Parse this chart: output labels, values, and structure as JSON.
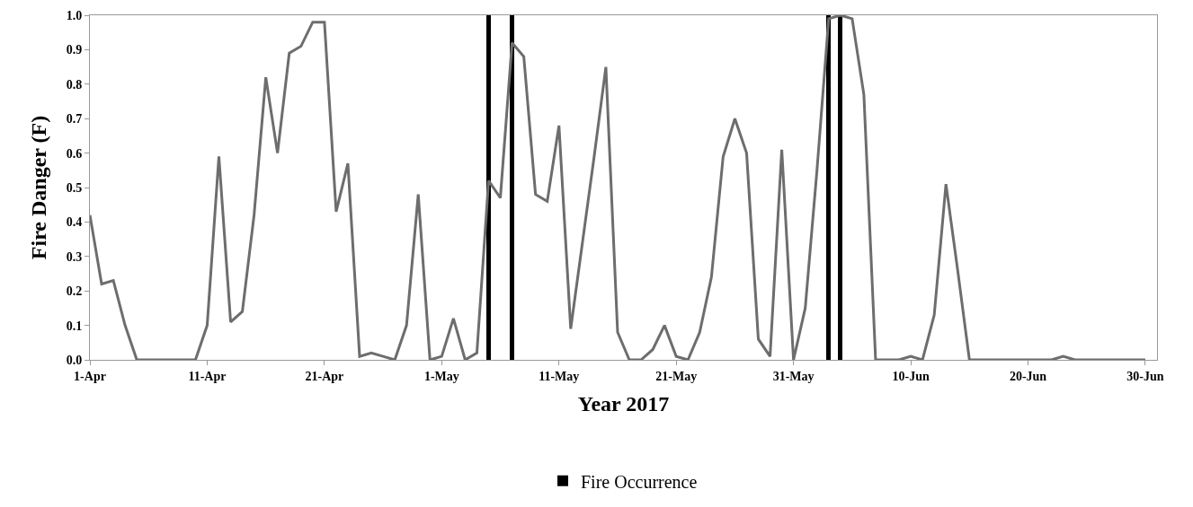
{
  "chart_data": {
    "type": "line",
    "xlabel": "Year 2017",
    "ylabel": "Fire Danger (F)",
    "ylim": [
      0,
      1.0
    ],
    "yticks": [
      {
        "value": 0,
        "label": "0.0"
      },
      {
        "value": 0.1,
        "label": "0.1"
      },
      {
        "value": 0.2,
        "label": "0.2"
      },
      {
        "value": 0.3,
        "label": "0.3"
      },
      {
        "value": 0.4,
        "label": "0.4"
      },
      {
        "value": 0.5,
        "label": "0.5"
      },
      {
        "value": 0.6,
        "label": "0.6"
      },
      {
        "value": 0.7,
        "label": "0.7"
      },
      {
        "value": 0.8,
        "label": "0.8"
      },
      {
        "value": 0.9,
        "label": "0.9"
      },
      {
        "value": 1.0,
        "label": "1.0"
      }
    ],
    "xlim": [
      "2017-04-01",
      "2017-07-01"
    ],
    "xticks": [
      {
        "value": "2017-04-01",
        "label": "1-Apr"
      },
      {
        "value": "2017-04-11",
        "label": "11-Apr"
      },
      {
        "value": "2017-04-21",
        "label": "21-Apr"
      },
      {
        "value": "2017-05-01",
        "label": "1-May"
      },
      {
        "value": "2017-05-11",
        "label": "11-May"
      },
      {
        "value": "2017-05-21",
        "label": "21-May"
      },
      {
        "value": "2017-05-31",
        "label": "31-May"
      },
      {
        "value": "2017-06-10",
        "label": "10-Jun"
      },
      {
        "value": "2017-06-20",
        "label": "20-Jun"
      },
      {
        "value": "2017-06-30",
        "label": "30-Jun"
      }
    ],
    "legend": "bottom",
    "grid": false,
    "series": [
      {
        "color": "#6d6d6d",
        "x": [
          "2017-04-01",
          "2017-04-02",
          "2017-04-03",
          "2017-04-04",
          "2017-04-05",
          "2017-04-06",
          "2017-04-07",
          "2017-04-08",
          "2017-04-09",
          "2017-04-10",
          "2017-04-11",
          "2017-04-12",
          "2017-04-13",
          "2017-04-14",
          "2017-04-15",
          "2017-04-16",
          "2017-04-17",
          "2017-04-18",
          "2017-04-19",
          "2017-04-20",
          "2017-04-21",
          "2017-04-22",
          "2017-04-23",
          "2017-04-24",
          "2017-04-25",
          "2017-04-26",
          "2017-04-27",
          "2017-04-28",
          "2017-04-29",
          "2017-04-30",
          "2017-05-01",
          "2017-05-02",
          "2017-05-03",
          "2017-05-04",
          "2017-05-05",
          "2017-05-06",
          "2017-05-07",
          "2017-05-08",
          "2017-05-09",
          "2017-05-10",
          "2017-05-11",
          "2017-05-12",
          "2017-05-13",
          "2017-05-14",
          "2017-05-15",
          "2017-05-16",
          "2017-05-17",
          "2017-05-18",
          "2017-05-19",
          "2017-05-20",
          "2017-05-21",
          "2017-05-22",
          "2017-05-23",
          "2017-05-24",
          "2017-05-25",
          "2017-05-26",
          "2017-05-27",
          "2017-05-28",
          "2017-05-29",
          "2017-05-30",
          "2017-05-31",
          "2017-06-01",
          "2017-06-02",
          "2017-06-03",
          "2017-06-04",
          "2017-06-05",
          "2017-06-06",
          "2017-06-07",
          "2017-06-08",
          "2017-06-09",
          "2017-06-10",
          "2017-06-11",
          "2017-06-12",
          "2017-06-13",
          "2017-06-14",
          "2017-06-15",
          "2017-06-16",
          "2017-06-17",
          "2017-06-18",
          "2017-06-19",
          "2017-06-20",
          "2017-06-21",
          "2017-06-22",
          "2017-06-23",
          "2017-06-24",
          "2017-06-25",
          "2017-06-26",
          "2017-06-27",
          "2017-06-28",
          "2017-06-29",
          "2017-06-30"
        ],
        "values": [
          0.42,
          0.22,
          0.23,
          0.1,
          0,
          0,
          0,
          0,
          0,
          0,
          0.1,
          0.59,
          0.11,
          0.14,
          0.42,
          0.82,
          0.6,
          0.89,
          0.91,
          0.98,
          0.98,
          0.43,
          0.57,
          0.01,
          0.02,
          0.01,
          0,
          0.1,
          0.48,
          0,
          0.01,
          0.12,
          0,
          0.02,
          0.52,
          0.47,
          0.92,
          0.88,
          0.48,
          0.46,
          0.68,
          0.09,
          0.34,
          0.59,
          0.85,
          0.08,
          0,
          0,
          0.03,
          0.1,
          0.01,
          0,
          0.08,
          0.24,
          0.59,
          0.7,
          0.6,
          0.06,
          0.01,
          0.61,
          0,
          0.15,
          0.55,
          0.99,
          1.0,
          0.99,
          0.77,
          0,
          0,
          0,
          0.01,
          0,
          0.13,
          0.51,
          0.26,
          0,
          0,
          0,
          0,
          0,
          0,
          0,
          0,
          0.01,
          0,
          0,
          0,
          0,
          0,
          0,
          0
        ]
      },
      {
        "type": "bar",
        "name": "Fire Occurrence",
        "color": "#000000",
        "x": [
          "2017-05-05",
          "2017-05-07",
          "2017-06-03",
          "2017-06-04"
        ],
        "values": [
          1.0,
          1.0,
          1.0,
          1.0
        ]
      }
    ]
  }
}
